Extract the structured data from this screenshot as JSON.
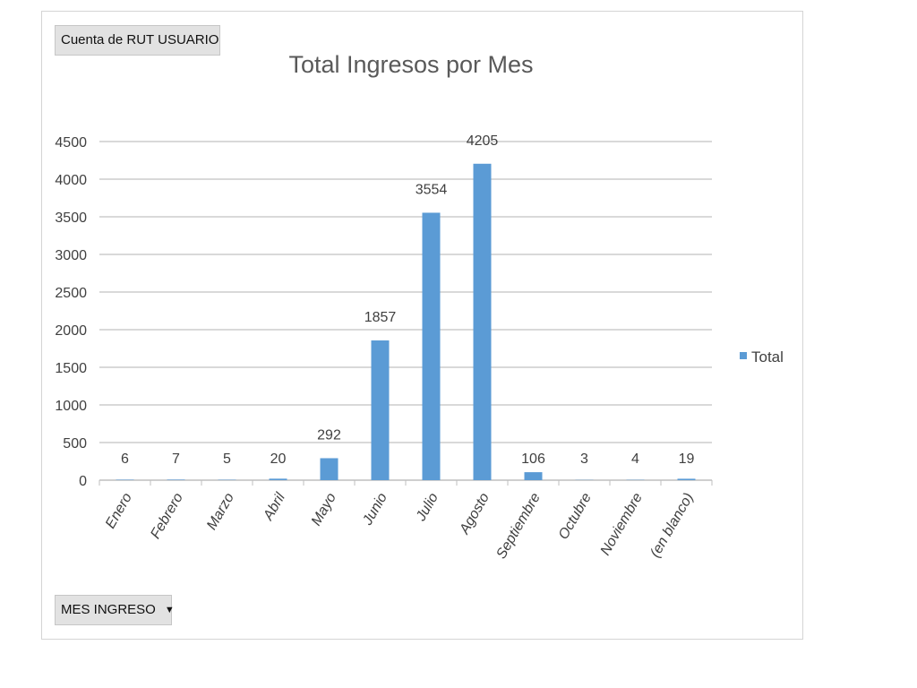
{
  "pivot": {
    "value_field": "Cuenta de RUT USUARIO",
    "axis_field": "MES INGRESO",
    "axis_dropdown_icon": "dropdown-arrow-icon"
  },
  "colors": {
    "bar": "#5b9bd5",
    "gridline": "#d9d9d9",
    "axis": "#bfbfbf"
  },
  "chart_data": {
    "type": "bar",
    "title": "Total Ingresos por Mes",
    "xlabel": "",
    "ylabel": "",
    "categories": [
      "Enero",
      "Febrero",
      "Marzo",
      "Abril",
      "Mayo",
      "Junio",
      "Julio",
      "Agosto",
      "Septiembre",
      "Octubre",
      "Noviembre",
      "(en blanco)"
    ],
    "series": [
      {
        "name": "Total",
        "values": [
          6,
          7,
          5,
          20,
          292,
          1857,
          3554,
          4205,
          106,
          3,
          4,
          19
        ]
      }
    ],
    "ylim": [
      0,
      4500
    ],
    "yticks": [
      0,
      500,
      1000,
      1500,
      2000,
      2500,
      3000,
      3500,
      4000,
      4500
    ],
    "grid": true,
    "legend": "right",
    "data_labels": true
  }
}
